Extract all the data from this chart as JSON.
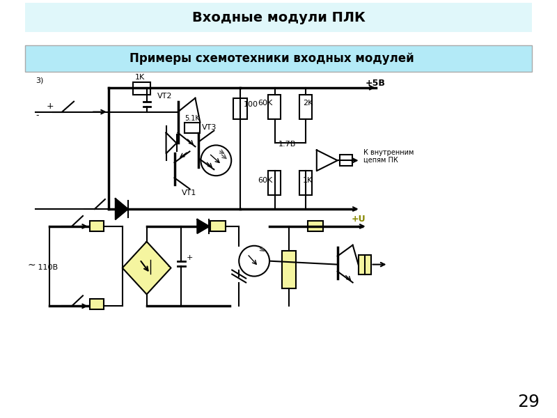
{
  "title": "Входные модули ПЛК",
  "subtitle": "Примеры схемотехники входных модулей",
  "title_bg": "#e0f7fa",
  "subtitle_bg": "#b3eaf7",
  "page_number": "29",
  "bg_color": "#ffffff"
}
